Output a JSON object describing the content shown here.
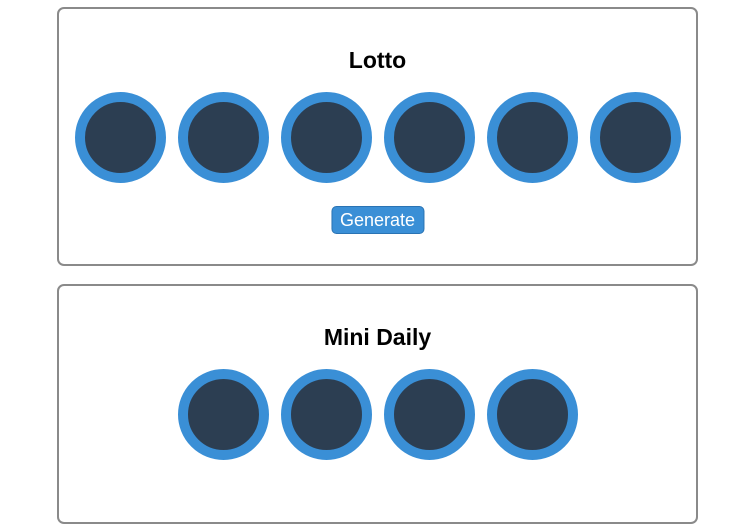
{
  "lotto": {
    "title": "Lotto",
    "balls": [
      "",
      "",
      "",
      "",
      "",
      ""
    ],
    "generate_label": "Generate"
  },
  "mini_daily": {
    "title": "Mini Daily",
    "balls": [
      "",
      "",
      "",
      ""
    ]
  },
  "colors": {
    "ball_fill": "#2c3e52",
    "ball_ring": "#3a8fd6",
    "button_bg": "#3a8fd6",
    "card_border": "#8a8a8a"
  }
}
